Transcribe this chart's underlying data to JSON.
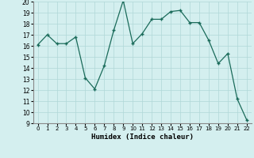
{
  "x": [
    0,
    1,
    2,
    3,
    4,
    5,
    6,
    7,
    8,
    9,
    10,
    11,
    12,
    13,
    14,
    15,
    16,
    17,
    18,
    19,
    20,
    21,
    22
  ],
  "y": [
    16.1,
    17.0,
    16.2,
    16.2,
    16.8,
    13.1,
    12.1,
    14.2,
    17.4,
    20.1,
    16.2,
    17.1,
    18.4,
    18.4,
    19.1,
    19.2,
    18.1,
    18.1,
    16.5,
    14.4,
    15.3,
    11.2,
    9.3
  ],
  "xlabel": "Humidex (Indice chaleur)",
  "ylim": [
    9,
    20
  ],
  "xlim": [
    -0.5,
    22.5
  ],
  "yticks": [
    9,
    10,
    11,
    12,
    13,
    14,
    15,
    16,
    17,
    18,
    19,
    20
  ],
  "xticks": [
    0,
    1,
    2,
    3,
    4,
    5,
    6,
    7,
    8,
    9,
    10,
    11,
    12,
    13,
    14,
    15,
    16,
    17,
    18,
    19,
    20,
    21,
    22
  ],
  "line_color": "#1a6b5a",
  "marker_color": "#1a6b5a",
  "bg_color": "#d4efef",
  "grid_color": "#b0d8d8"
}
